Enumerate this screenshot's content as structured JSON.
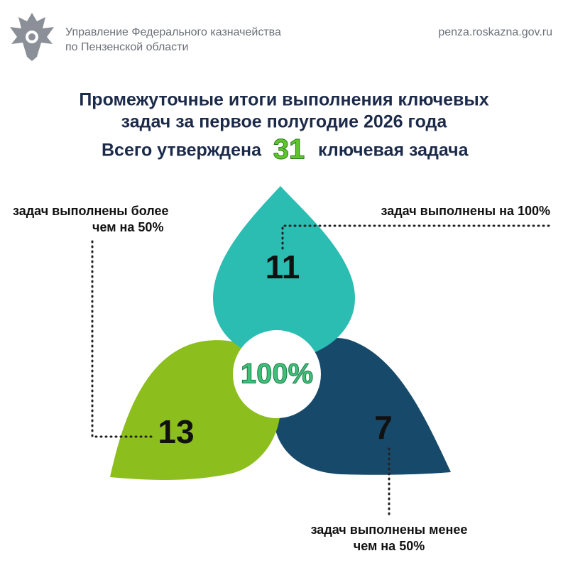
{
  "header": {
    "org_lines": [
      "Управление Федерального казначейства",
      "по Пензенской области"
    ],
    "website": "penza.roskazna.gov.ru"
  },
  "title": {
    "lines": [
      "Промежуточные итоги выполнения ключевых",
      "задач за первое полугодие 2026 года"
    ]
  },
  "total": {
    "before": "Всего утверждена",
    "number": "31",
    "after": "ключевая задача"
  },
  "center": "100%",
  "segments": [
    {
      "number": "11",
      "label_lines": [
        "задач выполнены на 100%"
      ]
    },
    {
      "number": "13",
      "label_lines": [
        "задач выполнены более",
        "чем на 50%"
      ]
    },
    {
      "number": "7",
      "label_lines": [
        "задач выполнены менее",
        "чем на 50%"
      ]
    }
  ]
}
